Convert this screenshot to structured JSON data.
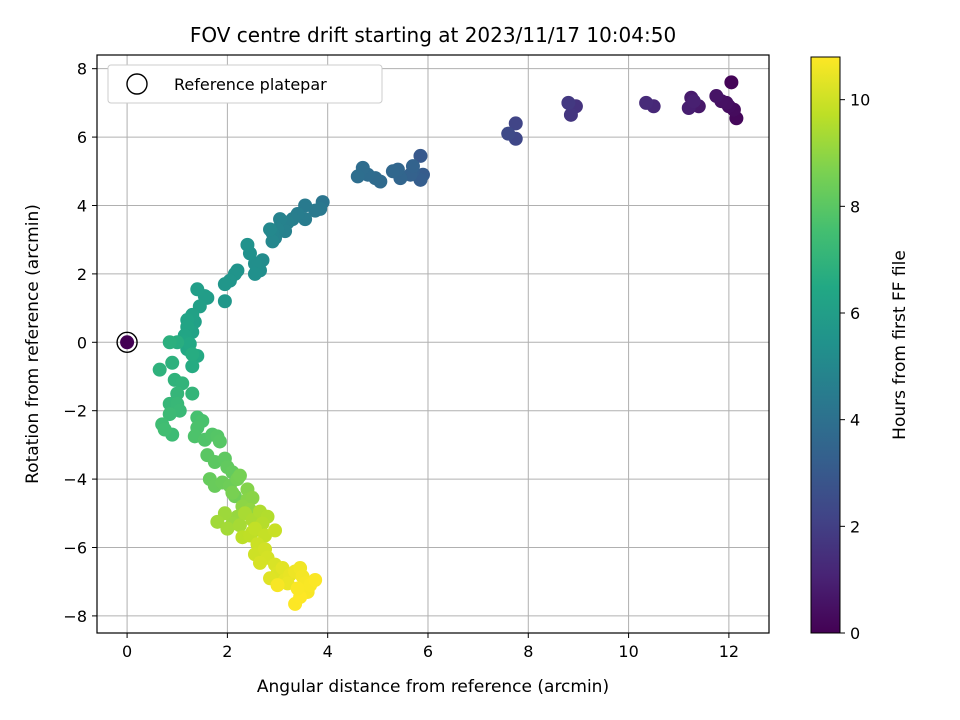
{
  "chart_data": {
    "type": "scatter",
    "title": "FOV centre drift starting at 2023/11/17 10:04:50",
    "xlabel": "Angular distance from reference (arcmin)",
    "ylabel": "Rotation from reference (arcmin)",
    "xlim": [
      -0.6,
      12.8
    ],
    "ylim": [
      -8.5,
      8.4
    ],
    "xticks": [
      0,
      2,
      4,
      6,
      8,
      10,
      12
    ],
    "yticks": [
      -8,
      -6,
      -4,
      -2,
      0,
      2,
      4,
      6,
      8
    ],
    "grid": true,
    "legend": {
      "placement": "top-left",
      "entries": [
        "Reference platepar"
      ]
    },
    "colorbar": {
      "label": "Hours from first FF file",
      "range": [
        0,
        10.8
      ],
      "ticks": [
        0,
        2,
        4,
        6,
        8,
        10
      ],
      "colormap": "viridis"
    },
    "reference_point": {
      "x": 0,
      "y": 0,
      "c": 0
    },
    "points": [
      [
        12.05,
        7.6,
        0.1
      ],
      [
        12.15,
        6.55,
        0.2
      ],
      [
        12.1,
        6.8,
        0.3
      ],
      [
        12.0,
        6.9,
        0.35
      ],
      [
        11.95,
        7.0,
        0.45
      ],
      [
        11.85,
        7.05,
        0.5
      ],
      [
        11.75,
        7.2,
        0.6
      ],
      [
        11.4,
        6.9,
        0.7
      ],
      [
        11.25,
        7.15,
        0.8
      ],
      [
        11.2,
        6.85,
        0.9
      ],
      [
        11.3,
        7.05,
        0.95
      ],
      [
        10.5,
        6.9,
        1.2
      ],
      [
        10.35,
        7.0,
        1.3
      ],
      [
        8.95,
        6.9,
        1.6
      ],
      [
        8.85,
        6.65,
        1.7
      ],
      [
        8.8,
        7.0,
        1.8
      ],
      [
        7.75,
        6.4,
        2.2
      ],
      [
        7.75,
        5.95,
        2.3
      ],
      [
        7.6,
        6.1,
        2.4
      ],
      [
        5.85,
        5.45,
        3.0
      ],
      [
        5.9,
        4.9,
        3.1
      ],
      [
        5.85,
        4.75,
        3.2
      ],
      [
        5.7,
        5.0,
        3.3
      ],
      [
        5.65,
        4.9,
        3.35
      ],
      [
        5.7,
        5.15,
        3.4
      ],
      [
        5.45,
        4.8,
        3.5
      ],
      [
        5.4,
        5.05,
        3.55
      ],
      [
        5.3,
        5.0,
        3.6
      ],
      [
        5.05,
        4.7,
        3.7
      ],
      [
        4.95,
        4.8,
        3.75
      ],
      [
        4.8,
        4.9,
        3.8
      ],
      [
        4.7,
        5.1,
        3.85
      ],
      [
        4.6,
        4.85,
        3.9
      ],
      [
        3.9,
        4.1,
        4.2
      ],
      [
        3.85,
        3.9,
        4.3
      ],
      [
        3.75,
        3.85,
        4.35
      ],
      [
        3.55,
        4.0,
        4.4
      ],
      [
        3.55,
        3.6,
        4.5
      ],
      [
        3.4,
        3.75,
        4.55
      ],
      [
        3.3,
        3.6,
        4.6
      ],
      [
        3.2,
        3.5,
        4.65
      ],
      [
        3.15,
        3.25,
        4.7
      ],
      [
        3.05,
        3.6,
        4.75
      ],
      [
        3.0,
        3.3,
        4.8
      ],
      [
        2.95,
        3.05,
        4.85
      ],
      [
        2.9,
        3.2,
        4.9
      ],
      [
        2.9,
        2.95,
        4.95
      ],
      [
        2.85,
        3.3,
        5.0
      ],
      [
        2.7,
        2.4,
        5.2
      ],
      [
        2.65,
        2.1,
        5.25
      ],
      [
        2.55,
        2.3,
        5.3
      ],
      [
        2.55,
        2.0,
        5.35
      ],
      [
        2.45,
        2.6,
        5.4
      ],
      [
        2.4,
        2.85,
        5.45
      ],
      [
        2.2,
        2.1,
        5.5
      ],
      [
        2.15,
        2.0,
        5.55
      ],
      [
        2.05,
        1.8,
        5.6
      ],
      [
        1.95,
        1.7,
        5.65
      ],
      [
        1.95,
        1.2,
        5.7
      ],
      [
        1.6,
        1.3,
        5.9
      ],
      [
        1.55,
        1.35,
        5.95
      ],
      [
        1.4,
        1.55,
        6.0
      ],
      [
        1.45,
        1.05,
        6.05
      ],
      [
        1.35,
        0.6,
        6.1
      ],
      [
        1.3,
        0.8,
        6.15
      ],
      [
        1.3,
        0.3,
        6.2
      ],
      [
        1.2,
        0.65,
        6.25
      ],
      [
        1.2,
        0.45,
        6.3
      ],
      [
        1.15,
        0.2,
        6.35
      ],
      [
        1.15,
        0.0,
        6.4
      ],
      [
        1.2,
        -0.2,
        6.45
      ],
      [
        1.25,
        -0.05,
        6.5
      ],
      [
        1.4,
        -0.4,
        6.55
      ],
      [
        1.3,
        -0.7,
        6.6
      ],
      [
        1.3,
        -0.35,
        6.65
      ],
      [
        1.0,
        0.0,
        6.7
      ],
      [
        0.85,
        0.0,
        6.8
      ],
      [
        0.9,
        -0.6,
        6.85
      ],
      [
        0.65,
        -0.8,
        6.9
      ],
      [
        0.95,
        -1.1,
        6.95
      ],
      [
        1.1,
        -1.2,
        7.0
      ],
      [
        1.3,
        -1.5,
        7.05
      ],
      [
        1.0,
        -1.5,
        7.1
      ],
      [
        0.85,
        -1.8,
        7.15
      ],
      [
        1.0,
        -1.8,
        7.2
      ],
      [
        1.05,
        -2.0,
        7.25
      ],
      [
        0.85,
        -2.1,
        7.3
      ],
      [
        0.9,
        -2.7,
        7.35
      ],
      [
        0.7,
        -2.4,
        7.4
      ],
      [
        0.75,
        -2.55,
        7.45
      ],
      [
        1.4,
        -2.2,
        7.6
      ],
      [
        1.5,
        -2.3,
        7.65
      ],
      [
        1.4,
        -2.5,
        7.7
      ],
      [
        1.35,
        -2.75,
        7.75
      ],
      [
        1.55,
        -2.85,
        7.8
      ],
      [
        1.7,
        -2.7,
        7.85
      ],
      [
        1.8,
        -2.75,
        7.9
      ],
      [
        1.85,
        -2.9,
        7.95
      ],
      [
        1.6,
        -3.3,
        8.0
      ],
      [
        1.75,
        -3.5,
        8.05
      ],
      [
        1.95,
        -3.4,
        8.1
      ],
      [
        2.0,
        -3.65,
        8.15
      ],
      [
        2.1,
        -3.8,
        8.2
      ],
      [
        1.65,
        -4.0,
        8.25
      ],
      [
        1.75,
        -4.2,
        8.3
      ],
      [
        1.9,
        -4.1,
        8.35
      ],
      [
        2.05,
        -4.2,
        8.4
      ],
      [
        2.15,
        -4.5,
        8.45
      ],
      [
        2.2,
        -4.0,
        8.5
      ],
      [
        2.25,
        -3.9,
        8.55
      ],
      [
        2.1,
        -4.4,
        8.6
      ],
      [
        2.4,
        -4.3,
        8.8
      ],
      [
        2.4,
        -4.6,
        8.85
      ],
      [
        2.5,
        -4.55,
        8.9
      ],
      [
        2.3,
        -4.8,
        8.95
      ],
      [
        2.45,
        -4.9,
        9.0
      ],
      [
        2.6,
        -5.0,
        9.05
      ],
      [
        2.2,
        -5.1,
        9.1
      ],
      [
        2.1,
        -5.3,
        9.15
      ],
      [
        1.95,
        -5.0,
        9.2
      ],
      [
        1.8,
        -5.25,
        9.25
      ],
      [
        2.0,
        -5.45,
        9.3
      ],
      [
        2.25,
        -5.35,
        9.35
      ],
      [
        2.35,
        -5.0,
        9.4
      ],
      [
        2.5,
        -5.2,
        9.45
      ],
      [
        2.65,
        -4.95,
        9.5
      ],
      [
        2.8,
        -5.1,
        9.55
      ],
      [
        2.7,
        -5.3,
        9.6
      ],
      [
        2.5,
        -5.55,
        9.65
      ],
      [
        2.3,
        -5.7,
        9.7
      ],
      [
        2.45,
        -5.65,
        9.75
      ],
      [
        2.55,
        -5.45,
        9.8
      ],
      [
        2.75,
        -5.65,
        9.85
      ],
      [
        2.95,
        -5.5,
        9.9
      ],
      [
        2.6,
        -5.9,
        9.95
      ],
      [
        2.55,
        -6.2,
        10.0
      ],
      [
        2.75,
        -6.05,
        10.05
      ],
      [
        2.8,
        -6.3,
        10.1
      ],
      [
        2.65,
        -6.45,
        10.15
      ],
      [
        2.95,
        -6.5,
        10.2
      ],
      [
        3.0,
        -6.75,
        10.25
      ],
      [
        2.85,
        -6.9,
        10.3
      ],
      [
        3.1,
        -6.6,
        10.35
      ],
      [
        3.15,
        -6.95,
        10.4
      ],
      [
        3.25,
        -6.8,
        10.45
      ],
      [
        3.2,
        -7.05,
        10.5
      ],
      [
        3.35,
        -6.7,
        10.55
      ],
      [
        3.45,
        -6.6,
        10.6
      ],
      [
        3.5,
        -6.85,
        10.65
      ],
      [
        3.55,
        -7.05,
        10.7
      ],
      [
        3.6,
        -7.3,
        10.72
      ],
      [
        3.65,
        -7.1,
        10.74
      ],
      [
        3.75,
        -6.95,
        10.76
      ],
      [
        3.35,
        -7.65,
        10.78
      ],
      [
        3.45,
        -7.45,
        10.8
      ],
      [
        3.0,
        -7.1,
        10.7
      ],
      [
        3.4,
        -7.2,
        10.75
      ]
    ]
  }
}
